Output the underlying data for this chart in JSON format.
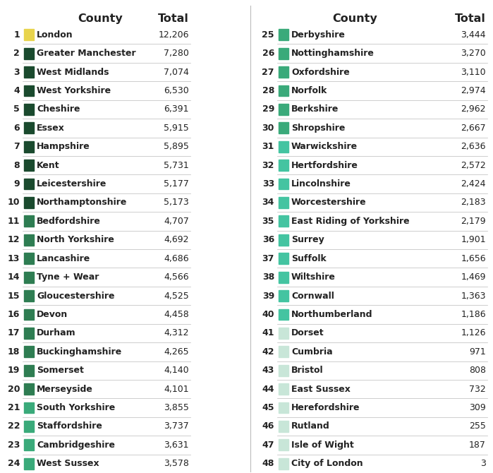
{
  "left_data": [
    {
      "rank": 1,
      "county": "London",
      "total": "12,206",
      "color": "#e8d44d"
    },
    {
      "rank": 2,
      "county": "Greater Manchester",
      "total": "7,280",
      "color": "#1a4a2e"
    },
    {
      "rank": 3,
      "county": "West Midlands",
      "total": "7,074",
      "color": "#1a4a2e"
    },
    {
      "rank": 4,
      "county": "West Yorkshire",
      "total": "6,530",
      "color": "#1a4a2e"
    },
    {
      "rank": 5,
      "county": "Cheshire",
      "total": "6,391",
      "color": "#1a4a2e"
    },
    {
      "rank": 6,
      "county": "Essex",
      "total": "5,915",
      "color": "#1a4a2e"
    },
    {
      "rank": 7,
      "county": "Hampshire",
      "total": "5,895",
      "color": "#1a4a2e"
    },
    {
      "rank": 8,
      "county": "Kent",
      "total": "5,731",
      "color": "#1a4a2e"
    },
    {
      "rank": 9,
      "county": "Leicestershire",
      "total": "5,177",
      "color": "#1a4a2e"
    },
    {
      "rank": 10,
      "county": "Northamptonshire",
      "total": "5,173",
      "color": "#1a4a2e"
    },
    {
      "rank": 11,
      "county": "Bedfordshire",
      "total": "4,707",
      "color": "#2e7d52"
    },
    {
      "rank": 12,
      "county": "North Yorkshire",
      "total": "4,692",
      "color": "#2e7d52"
    },
    {
      "rank": 13,
      "county": "Lancashire",
      "total": "4,686",
      "color": "#2e7d52"
    },
    {
      "rank": 14,
      "county": "Tyne + Wear",
      "total": "4,566",
      "color": "#2e7d52"
    },
    {
      "rank": 15,
      "county": "Gloucestershire",
      "total": "4,525",
      "color": "#2e7d52"
    },
    {
      "rank": 16,
      "county": "Devon",
      "total": "4,458",
      "color": "#2e7d52"
    },
    {
      "rank": 17,
      "county": "Durham",
      "total": "4,312",
      "color": "#2e7d52"
    },
    {
      "rank": 18,
      "county": "Buckinghamshire",
      "total": "4,265",
      "color": "#2e7d52"
    },
    {
      "rank": 19,
      "county": "Somerset",
      "total": "4,140",
      "color": "#2e7d52"
    },
    {
      "rank": 20,
      "county": "Merseyside",
      "total": "4,101",
      "color": "#2e7d52"
    },
    {
      "rank": 21,
      "county": "South Yorkshire",
      "total": "3,855",
      "color": "#3aaa7a"
    },
    {
      "rank": 22,
      "county": "Staffordshire",
      "total": "3,737",
      "color": "#3aaa7a"
    },
    {
      "rank": 23,
      "county": "Cambridgeshire",
      "total": "3,631",
      "color": "#3aaa7a"
    },
    {
      "rank": 24,
      "county": "West Sussex",
      "total": "3,578",
      "color": "#3aaa7a"
    }
  ],
  "right_data": [
    {
      "rank": 25,
      "county": "Derbyshire",
      "total": "3,444",
      "color": "#3aaa7a"
    },
    {
      "rank": 26,
      "county": "Nottinghamshire",
      "total": "3,270",
      "color": "#3aaa7a"
    },
    {
      "rank": 27,
      "county": "Oxfordshire",
      "total": "3,110",
      "color": "#3aaa7a"
    },
    {
      "rank": 28,
      "county": "Norfolk",
      "total": "2,974",
      "color": "#3aaa7a"
    },
    {
      "rank": 29,
      "county": "Berkshire",
      "total": "2,962",
      "color": "#3aaa7a"
    },
    {
      "rank": 30,
      "county": "Shropshire",
      "total": "2,667",
      "color": "#3aaa7a"
    },
    {
      "rank": 31,
      "county": "Warwickshire",
      "total": "2,636",
      "color": "#44c4a1"
    },
    {
      "rank": 32,
      "county": "Hertfordshire",
      "total": "2,572",
      "color": "#44c4a1"
    },
    {
      "rank": 33,
      "county": "Lincolnshire",
      "total": "2,424",
      "color": "#44c4a1"
    },
    {
      "rank": 34,
      "county": "Worcestershire",
      "total": "2,183",
      "color": "#44c4a1"
    },
    {
      "rank": 35,
      "county": "East Riding of Yorkshire",
      "total": "2,179",
      "color": "#44c4a1"
    },
    {
      "rank": 36,
      "county": "Surrey",
      "total": "1,901",
      "color": "#44c4a1"
    },
    {
      "rank": 37,
      "county": "Suffolk",
      "total": "1,656",
      "color": "#44c4a1"
    },
    {
      "rank": 38,
      "county": "Wiltshire",
      "total": "1,469",
      "color": "#44c4a1"
    },
    {
      "rank": 39,
      "county": "Cornwall",
      "total": "1,363",
      "color": "#44c4a1"
    },
    {
      "rank": 40,
      "county": "Northumberland",
      "total": "1,186",
      "color": "#44c4a1"
    },
    {
      "rank": 41,
      "county": "Dorset",
      "total": "1,126",
      "color": "#c8e6d8"
    },
    {
      "rank": 42,
      "county": "Cumbria",
      "total": "971",
      "color": "#c8e6d8"
    },
    {
      "rank": 43,
      "county": "Bristol",
      "total": "808",
      "color": "#c8e6d8"
    },
    {
      "rank": 44,
      "county": "East Sussex",
      "total": "732",
      "color": "#c8e6d8"
    },
    {
      "rank": 45,
      "county": "Herefordshire",
      "total": "309",
      "color": "#c8e6d8"
    },
    {
      "rank": 46,
      "county": "Rutland",
      "total": "255",
      "color": "#c8e6d8"
    },
    {
      "rank": 47,
      "county": "Isle of Wight",
      "total": "187",
      "color": "#c8e6d8"
    },
    {
      "rank": 48,
      "county": "City of London",
      "total": "3",
      "color": "#c8e6d8"
    }
  ],
  "col_header_county": "County",
  "col_header_total": "Total",
  "bg_color": "#ffffff",
  "header_fontsize": 11.5,
  "row_fontsize": 9,
  "rank_fontsize": 9,
  "separator_color": "#bbbbbb",
  "text_color": "#222222"
}
